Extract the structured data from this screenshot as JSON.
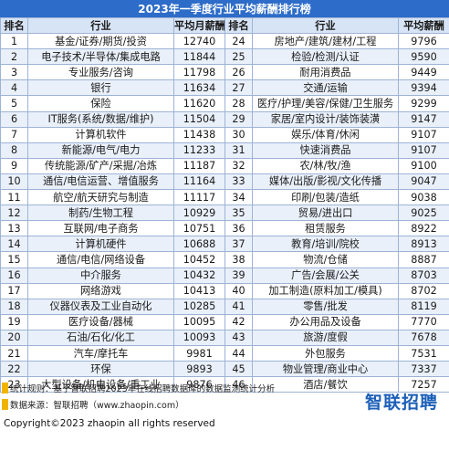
{
  "title": "2023年一季度行业平均薪酬排行榜",
  "headers": [
    "排名",
    "行业",
    "平均月薪酬",
    "排名",
    "行业",
    "平均薪酬"
  ],
  "rows": [
    {
      "left": {
        "rank": "1",
        "industry": "基金/证券/期货/投资",
        "salary": "12740"
      },
      "right": {
        "rank": "24",
        "industry": "房地产/建筑/建材/工程",
        "salary": "9796"
      }
    },
    {
      "left": {
        "rank": "2",
        "industry": "电子技术/半导体/集成电路",
        "salary": "11844"
      },
      "right": {
        "rank": "25",
        "industry": "检验/检测/认证",
        "salary": "9590"
      }
    },
    {
      "left": {
        "rank": "3",
        "industry": "专业服务/咨询",
        "salary": "11798"
      },
      "right": {
        "rank": "26",
        "industry": "耐用消费品",
        "salary": "9449"
      }
    },
    {
      "left": {
        "rank": "4",
        "industry": "银行",
        "salary": "11634"
      },
      "right": {
        "rank": "27",
        "industry": "交通/运输",
        "salary": "9394"
      }
    },
    {
      "left": {
        "rank": "5",
        "industry": "保险",
        "salary": "11620"
      },
      "right": {
        "rank": "28",
        "industry": "医疗/护理/美容/保健/卫生服务",
        "salary": "9299"
      }
    },
    {
      "left": {
        "rank": "6",
        "industry": "IT服务(系统/数据/维护)",
        "salary": "11504"
      },
      "right": {
        "rank": "29",
        "industry": "家居/室内设计/装饰装潢",
        "salary": "9147"
      }
    },
    {
      "left": {
        "rank": "7",
        "industry": "计算机软件",
        "salary": "11438"
      },
      "right": {
        "rank": "30",
        "industry": "娱乐/体育/休闲",
        "salary": "9107"
      }
    },
    {
      "left": {
        "rank": "8",
        "industry": "新能源/电气/电力",
        "salary": "11233"
      },
      "right": {
        "rank": "31",
        "industry": "快速消费品",
        "salary": "9107"
      }
    },
    {
      "left": {
        "rank": "9",
        "industry": "传统能源/矿产/采掘/冶炼",
        "salary": "11187"
      },
      "right": {
        "rank": "32",
        "industry": "农/林/牧/渔",
        "salary": "9100"
      }
    },
    {
      "left": {
        "rank": "10",
        "industry": "通信/电信运营、增值服务",
        "salary": "11164"
      },
      "right": {
        "rank": "33",
        "industry": "媒体/出版/影视/文化传播",
        "salary": "9047"
      }
    },
    {
      "left": {
        "rank": "11",
        "industry": "航空/航天研究与制造",
        "salary": "11117"
      },
      "right": {
        "rank": "34",
        "industry": "印刷/包装/造纸",
        "salary": "9038"
      }
    },
    {
      "left": {
        "rank": "12",
        "industry": "制药/生物工程",
        "salary": "10929"
      },
      "right": {
        "rank": "35",
        "industry": "贸易/进出口",
        "salary": "9025"
      }
    },
    {
      "left": {
        "rank": "13",
        "industry": "互联网/电子商务",
        "salary": "10751"
      },
      "right": {
        "rank": "36",
        "industry": "租赁服务",
        "salary": "8922"
      }
    },
    {
      "left": {
        "rank": "14",
        "industry": "计算机硬件",
        "salary": "10688"
      },
      "right": {
        "rank": "37",
        "industry": "教育/培训/院校",
        "salary": "8913"
      }
    },
    {
      "left": {
        "rank": "15",
        "industry": "通信/电信/网络设备",
        "salary": "10452"
      },
      "right": {
        "rank": "38",
        "industry": "物流/仓储",
        "salary": "8887"
      }
    },
    {
      "left": {
        "rank": "16",
        "industry": "中介服务",
        "salary": "10432"
      },
      "right": {
        "rank": "39",
        "industry": "广告/会展/公关",
        "salary": "8703"
      }
    },
    {
      "left": {
        "rank": "17",
        "industry": "网络游戏",
        "salary": "10413"
      },
      "right": {
        "rank": "40",
        "industry": "加工制造(原料加工/模具)",
        "salary": "8702"
      }
    },
    {
      "left": {
        "rank": "18",
        "industry": "仪器仪表及工业自动化",
        "salary": "10285"
      },
      "right": {
        "rank": "41",
        "industry": "零售/批发",
        "salary": "8119"
      }
    },
    {
      "left": {
        "rank": "19",
        "industry": "医疗设备/器械",
        "salary": "10095"
      },
      "right": {
        "rank": "42",
        "industry": "办公用品及设备",
        "salary": "7770"
      }
    },
    {
      "left": {
        "rank": "20",
        "industry": "石油/石化/化工",
        "salary": "10093"
      },
      "right": {
        "rank": "43",
        "industry": "旅游/度假",
        "salary": "7678"
      }
    },
    {
      "left": {
        "rank": "21",
        "industry": "汽车/摩托车",
        "salary": "9981"
      },
      "right": {
        "rank": "44",
        "industry": "外包服务",
        "salary": "7531"
      }
    },
    {
      "left": {
        "rank": "22",
        "industry": "环保",
        "salary": "9893"
      },
      "right": {
        "rank": "45",
        "industry": "物业管理/商业中心",
        "salary": "7337"
      }
    },
    {
      "left": {
        "rank": "23",
        "industry": "大型设备/机电设备/重工业",
        "salary": "9876"
      },
      "right": {
        "rank": "46",
        "industry": "酒店/餐饮",
        "salary": "7257"
      }
    }
  ],
  "footer": {
    "stat_rule": "统计规则：基于智联招聘2023年在线招聘数据库的数据监测统计分析",
    "data_source": "数据来源：智联招聘（www.zhaopin.com）",
    "copyright": "Copyright©2023 zhaopin all rights reserved",
    "logo_text": "智联招聘"
  },
  "colors": {
    "title_bar": "#2d6cc8",
    "header_bg": "#d7e4f5",
    "row_alt_bg": "#e9f0fa",
    "border": "#9db3d6",
    "note_marker": "#f0b400",
    "logo": "#1b5fb8"
  }
}
